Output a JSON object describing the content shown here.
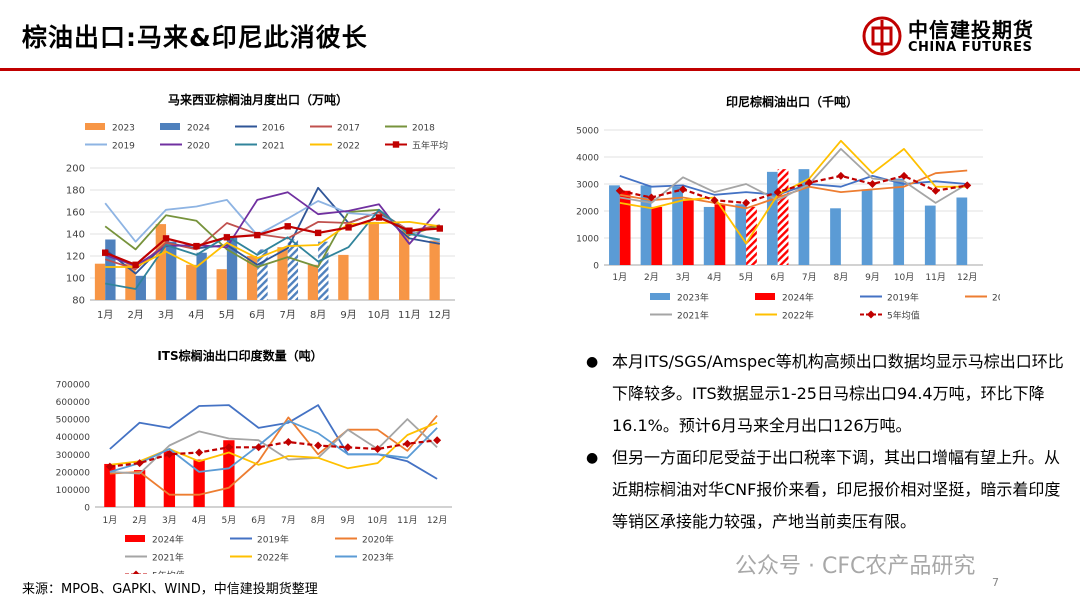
{
  "title": "棕油出口:马来&印尼此消彼长",
  "brand": {
    "cn": "中信建投期货",
    "en": "CHINA FUTURES"
  },
  "colors": {
    "accent": "#c00000"
  },
  "chart_data": [
    {
      "id": "malaysia",
      "type": "bar",
      "title": "马来西亚棕榈油月度出口（万吨）",
      "categories": [
        "1月",
        "2月",
        "3月",
        "4月",
        "5月",
        "6月",
        "7月",
        "8月",
        "9月",
        "10月",
        "11月",
        "12月"
      ],
      "ylim": [
        80,
        200
      ],
      "yticks": [
        80,
        100,
        120,
        140,
        160,
        180,
        200
      ],
      "grid": true,
      "legend_position": "top",
      "bar_series": [
        {
          "name": "2023",
          "color": "#f79646",
          "values": [
            113,
            113,
            149,
            112,
            108,
            120,
            128,
            112,
            121,
            151,
            143,
            134
          ],
          "hatched": [
            false,
            false,
            false,
            false,
            false,
            false,
            false,
            false,
            false,
            false,
            false,
            false
          ]
        },
        {
          "name": "2024",
          "color": "#4f81bd",
          "values": [
            135,
            102,
            133,
            123,
            137,
            126,
            135,
            133,
            null,
            null,
            null,
            null
          ],
          "hatched": [
            false,
            false,
            false,
            false,
            false,
            true,
            true,
            true,
            false,
            false,
            false,
            false
          ]
        }
      ],
      "line_series": [
        {
          "name": "2016",
          "color": "#2f5597",
          "values": [
            126,
            104,
            132,
            127,
            130,
            112,
            127,
            182,
            150,
            160,
            136,
            131
          ]
        },
        {
          "name": "2017",
          "color": "#c0504d",
          "values": [
            117,
            108,
            132,
            126,
            150,
            140,
            136,
            151,
            150,
            160,
            143,
            148
          ]
        },
        {
          "name": "2018",
          "color": "#77933c",
          "values": [
            147,
            126,
            157,
            152,
            126,
            110,
            119,
            110,
            160,
            162,
            139,
            148
          ]
        },
        {
          "name": "2019",
          "color": "#8eb4e3",
          "values": [
            168,
            133,
            162,
            165,
            171,
            139,
            154,
            170,
            159,
            157,
            143,
            133
          ]
        },
        {
          "name": "2020",
          "color": "#7030a0",
          "values": [
            121,
            111,
            129,
            130,
            128,
            171,
            178,
            158,
            161,
            167,
            131,
            163
          ]
        },
        {
          "name": "2021",
          "color": "#31849b",
          "values": [
            95,
            90,
            130,
            121,
            138,
            121,
            137,
            115,
            128,
            162,
            140,
            135
          ]
        },
        {
          "name": "2022",
          "color": "#ffc000",
          "values": [
            110,
            110,
            124,
            110,
            132,
            118,
            129,
            130,
            149,
            150,
            151,
            147
          ]
        },
        {
          "name": "五年平均",
          "color": "#c00000",
          "marker": "square",
          "values": [
            123,
            112,
            136,
            129,
            137,
            139,
            147,
            141,
            146,
            155,
            143,
            145
          ]
        }
      ]
    },
    {
      "id": "indonesia",
      "type": "bar",
      "title": "印尼棕榈油出口（千吨）",
      "categories": [
        "1月",
        "2月",
        "3月",
        "4月",
        "5月",
        "6月",
        "7月",
        "8月",
        "9月",
        "10月",
        "11月",
        "12月"
      ],
      "ylim": [
        0,
        5000
      ],
      "yticks": [
        0,
        1000,
        2000,
        3000,
        4000,
        5000
      ],
      "grid": true,
      "legend_position": "bottom",
      "bar_series": [
        {
          "name": "2023年",
          "color": "#5b9bd5",
          "values": [
            2950,
            2950,
            2900,
            2150,
            2250,
            3450,
            3550,
            2100,
            2800,
            3200,
            2200,
            2500
          ],
          "hatched": [
            false,
            false,
            false,
            false,
            false,
            false,
            false,
            false,
            false,
            false,
            false,
            false
          ]
        },
        {
          "name": "2024年",
          "color": "#ff0000",
          "values": [
            2750,
            2150,
            2400,
            2250,
            2150,
            3550,
            null,
            null,
            null,
            null,
            null,
            null
          ],
          "hatched": [
            false,
            false,
            false,
            false,
            true,
            true,
            false,
            false,
            false,
            false,
            false,
            false
          ]
        }
      ],
      "line_series": [
        {
          "name": "2019年",
          "color": "#4472c4",
          "values": [
            3300,
            2900,
            2950,
            2600,
            2700,
            2600,
            3000,
            2900,
            3300,
            3000,
            3100,
            3000
          ]
        },
        {
          "name": "2020年",
          "color": "#ed7d31",
          "values": [
            2600,
            2400,
            2500,
            2300,
            2100,
            2500,
            2900,
            2700,
            2800,
            2900,
            3400,
            3500
          ]
        },
        {
          "name": "2021年",
          "color": "#a5a5a5",
          "values": [
            2500,
            2300,
            3250,
            2700,
            3000,
            2400,
            3000,
            4300,
            3200,
            3100,
            2300,
            3000
          ]
        },
        {
          "name": "2022年",
          "color": "#ffc000",
          "values": [
            2300,
            2100,
            2400,
            2500,
            800,
            2600,
            3200,
            4600,
            3400,
            4300,
            2900,
            2900
          ]
        },
        {
          "name": "5年均值",
          "color": "#c00000",
          "dashed": true,
          "marker": "diamond",
          "values": [
            2750,
            2500,
            2800,
            2400,
            2300,
            2700,
            3050,
            3300,
            3000,
            3300,
            2750,
            2950
          ]
        }
      ]
    },
    {
      "id": "its-india",
      "type": "bar",
      "title": "ITS棕榈油出口印度数量（吨）",
      "categories": [
        "1月",
        "2月",
        "3月",
        "4月",
        "5月",
        "6月",
        "7月",
        "8月",
        "9月",
        "10月",
        "11月",
        "12月"
      ],
      "ylim": [
        0,
        700000
      ],
      "yticks": [
        0,
        100000,
        200000,
        300000,
        400000,
        500000,
        600000,
        700000
      ],
      "grid": false,
      "legend_position": "bottom",
      "bar_series": [
        {
          "name": "2024年",
          "color": "#ff0000",
          "values": [
            245000,
            210000,
            320000,
            270000,
            380000,
            null,
            null,
            null,
            null,
            null,
            null,
            null
          ],
          "hatched": [
            false,
            false,
            false,
            false,
            false,
            false,
            false,
            false,
            false,
            false,
            false,
            false
          ]
        }
      ],
      "line_series": [
        {
          "name": "2019年",
          "color": "#4472c4",
          "values": [
            330000,
            480000,
            450000,
            575000,
            580000,
            450000,
            480000,
            580000,
            300000,
            300000,
            260000,
            160000
          ]
        },
        {
          "name": "2020年",
          "color": "#ed7d31",
          "values": [
            190000,
            200000,
            70000,
            70000,
            110000,
            260000,
            510000,
            300000,
            440000,
            440000,
            320000,
            520000
          ]
        },
        {
          "name": "2021年",
          "color": "#a5a5a5",
          "values": [
            200000,
            190000,
            350000,
            430000,
            390000,
            380000,
            270000,
            280000,
            440000,
            330000,
            500000,
            340000
          ]
        },
        {
          "name": "2022年",
          "color": "#ffc000",
          "values": [
            240000,
            260000,
            330000,
            260000,
            310000,
            240000,
            290000,
            280000,
            220000,
            250000,
            410000,
            480000
          ]
        },
        {
          "name": "2023年",
          "color": "#5b9bd5",
          "values": [
            200000,
            250000,
            330000,
            200000,
            220000,
            350000,
            490000,
            420000,
            300000,
            300000,
            280000,
            450000
          ]
        },
        {
          "name": "5年均值",
          "color": "#c00000",
          "dashed": true,
          "marker": "diamond",
          "values": [
            230000,
            250000,
            300000,
            310000,
            340000,
            340000,
            370000,
            350000,
            340000,
            330000,
            360000,
            380000
          ]
        }
      ]
    }
  ],
  "bullets": [
    "本月ITS/SGS/Amspec等机构高频出口数据均显示马棕出口环比下降较多。ITS数据显示1-25日马棕出口94.4万吨，环比下降16.1%。预计6月马来全月出口126万吨。",
    "但另一方面印尼受益于出口税率下调，其出口增幅有望上升。从近期棕榈油对华CNF报价来看，印尼报价相对坚挺，暗示着印度等销区承接能力较强，产地当前卖压有限。"
  ],
  "source": "来源：MPOB、GAPKI、WIND，中信建投期货整理",
  "watermark": "公众号 · CFC农产品研究",
  "page_number": "7"
}
